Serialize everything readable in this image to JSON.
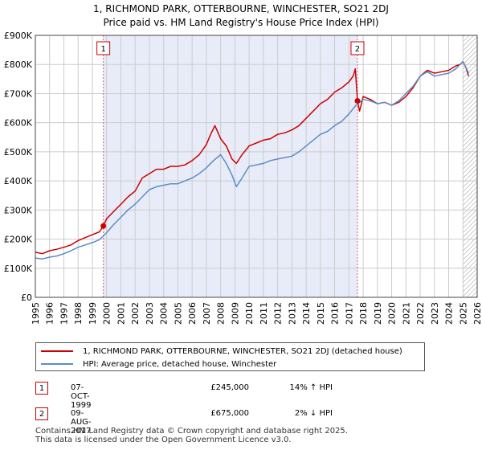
{
  "title_line1": "1, RICHMOND PARK, OTTERBOURNE, WINCHESTER, SO21 2DJ",
  "title_line2": "Price paid vs. HM Land Registry's House Price Index (HPI)",
  "colors": {
    "property": "#cc0000",
    "hpi": "#5b8cc8",
    "shade": "#e8ecf8",
    "grid": "#cccccc",
    "vline": "#e06060"
  },
  "chart_data": {
    "type": "line",
    "title": "Price paid vs. HM Land Registry's House Price Index (HPI)",
    "xlim": [
      1995.0,
      2026.0
    ],
    "ylim": [
      0,
      900000
    ],
    "x_ticks": [
      "1995",
      "1996",
      "1997",
      "1998",
      "1999",
      "2000",
      "2001",
      "2002",
      "2003",
      "2004",
      "2005",
      "2006",
      "2007",
      "2008",
      "2009",
      "2010",
      "2011",
      "2012",
      "2013",
      "2014",
      "2015",
      "2016",
      "2017",
      "2018",
      "2019",
      "2020",
      "2021",
      "2022",
      "2023",
      "2024",
      "2025",
      "2026"
    ],
    "y_ticks": [
      {
        "value": 0,
        "label": "£0"
      },
      {
        "value": 100000,
        "label": "£100K"
      },
      {
        "value": 200000,
        "label": "£200K"
      },
      {
        "value": 300000,
        "label": "£300K"
      },
      {
        "value": 400000,
        "label": "£400K"
      },
      {
        "value": 500000,
        "label": "£500K"
      },
      {
        "value": 600000,
        "label": "£600K"
      },
      {
        "value": 700000,
        "label": "£700K"
      },
      {
        "value": 800000,
        "label": "£800K"
      },
      {
        "value": 900000,
        "label": "£900K"
      }
    ],
    "shaded_range": [
      1999.77,
      2017.6
    ],
    "hatched_from": 2025.0,
    "series": [
      {
        "name": "1, RICHMOND PARK, OTTERBOURNE, WINCHESTER, SO21 2DJ (detached house)",
        "color": "#cc0000",
        "x": [
          1995.0,
          1995.5,
          1996.0,
          1996.5,
          1997.0,
          1997.5,
          1998.0,
          1998.5,
          1999.0,
          1999.5,
          1999.77,
          2000.0,
          2000.5,
          2001.0,
          2001.5,
          2002.0,
          2002.5,
          2003.0,
          2003.5,
          2004.0,
          2004.5,
          2005.0,
          2005.5,
          2006.0,
          2006.5,
          2007.0,
          2007.3,
          2007.6,
          2008.0,
          2008.4,
          2008.8,
          2009.1,
          2009.5,
          2010.0,
          2010.5,
          2011.0,
          2011.5,
          2012.0,
          2012.5,
          2013.0,
          2013.5,
          2014.0,
          2014.5,
          2015.0,
          2015.5,
          2016.0,
          2016.5,
          2017.0,
          2017.3,
          2017.45,
          2017.6,
          2017.75,
          2018.0,
          2018.5,
          2019.0,
          2019.5,
          2020.0,
          2020.5,
          2021.0,
          2021.5,
          2022.0,
          2022.5,
          2023.0,
          2023.5,
          2024.0,
          2024.5,
          2024.8,
          2025.0,
          2025.2,
          2025.4
        ],
        "y": [
          155000,
          150000,
          160000,
          165000,
          172000,
          180000,
          195000,
          205000,
          215000,
          225000,
          245000,
          270000,
          295000,
          320000,
          345000,
          365000,
          410000,
          425000,
          440000,
          440000,
          450000,
          450000,
          455000,
          470000,
          490000,
          525000,
          560000,
          590000,
          545000,
          520000,
          475000,
          460000,
          490000,
          520000,
          530000,
          540000,
          545000,
          560000,
          565000,
          575000,
          590000,
          615000,
          640000,
          665000,
          680000,
          705000,
          720000,
          740000,
          760000,
          785000,
          675000,
          640000,
          690000,
          680000,
          665000,
          670000,
          660000,
          670000,
          690000,
          720000,
          760000,
          780000,
          770000,
          775000,
          780000,
          795000,
          800000,
          810000,
          790000,
          760000
        ]
      },
      {
        "name": "HPI: Average price, detached house, Winchester",
        "color": "#5b8cc8",
        "x": [
          1995.0,
          1995.5,
          1996.0,
          1996.5,
          1997.0,
          1997.5,
          1998.0,
          1998.5,
          1999.0,
          1999.5,
          2000.0,
          2000.5,
          2001.0,
          2001.5,
          2002.0,
          2002.5,
          2003.0,
          2003.5,
          2004.0,
          2004.5,
          2005.0,
          2005.5,
          2006.0,
          2006.5,
          2007.0,
          2007.5,
          2008.0,
          2008.4,
          2008.8,
          2009.1,
          2009.5,
          2010.0,
          2010.5,
          2011.0,
          2011.5,
          2012.0,
          2012.5,
          2013.0,
          2013.5,
          2014.0,
          2014.5,
          2015.0,
          2015.5,
          2016.0,
          2016.5,
          2017.0,
          2017.5,
          2018.0,
          2018.5,
          2019.0,
          2019.5,
          2020.0,
          2020.5,
          2021.0,
          2021.5,
          2022.0,
          2022.5,
          2023.0,
          2023.5,
          2024.0,
          2024.5,
          2025.0,
          2025.2,
          2025.4
        ],
        "y": [
          135000,
          132000,
          138000,
          142000,
          150000,
          160000,
          172000,
          180000,
          188000,
          198000,
          222000,
          250000,
          275000,
          300000,
          320000,
          345000,
          370000,
          380000,
          385000,
          390000,
          390000,
          400000,
          410000,
          425000,
          445000,
          470000,
          490000,
          460000,
          420000,
          380000,
          410000,
          450000,
          455000,
          460000,
          470000,
          475000,
          480000,
          485000,
          500000,
          520000,
          540000,
          560000,
          570000,
          590000,
          605000,
          630000,
          660000,
          680000,
          675000,
          665000,
          670000,
          660000,
          675000,
          700000,
          725000,
          760000,
          775000,
          760000,
          765000,
          770000,
          785000,
          810000,
          790000,
          770000
        ]
      }
    ],
    "sale_points": [
      {
        "label": "1",
        "x": 1999.77,
        "y": 245000
      },
      {
        "label": "2",
        "x": 2017.6,
        "y": 675000
      }
    ]
  },
  "legend": {
    "property_label": "1, RICHMOND PARK, OTTERBOURNE, WINCHESTER, SO21 2DJ (detached house)",
    "hpi_label": "HPI: Average price, detached house, Winchester"
  },
  "annotations": [
    {
      "label": "1",
      "date": "07-OCT-1999",
      "price": "£245,000",
      "hpi": "14% ↑ HPI"
    },
    {
      "label": "2",
      "date": "09-AUG-2017",
      "price": "£675,000",
      "hpi": "2% ↓ HPI"
    }
  ],
  "footer": {
    "line1": "Contains HM Land Registry data © Crown copyright and database right 2025.",
    "line2": "This data is licensed under the Open Government Licence v3.0."
  }
}
